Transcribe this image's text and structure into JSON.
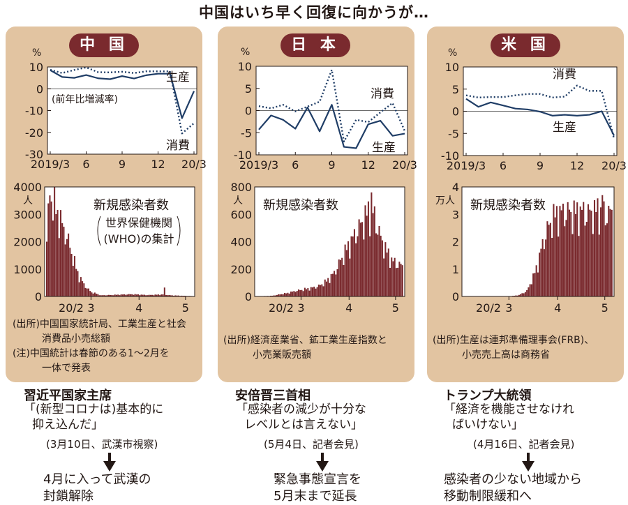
{
  "title": "中国はいち早く回復に向かうが…",
  "colors": {
    "panel": "#e2c4a1",
    "badge": "#7a2a2e",
    "line": "#1f3d66",
    "bar": "#7a2a2e",
    "text": "#231815"
  },
  "chart_data": [
    {
      "id": "china-econ",
      "type": "line",
      "unit": "%",
      "note": "(前年比増減率)",
      "x": [
        "2019/3",
        "4",
        "5",
        "6",
        "7",
        "8",
        "9",
        "10",
        "11",
        "12",
        "20/1",
        "20/2",
        "20/3"
      ],
      "xticks": [
        "2019/3",
        "6",
        "9",
        "12",
        "20/3"
      ],
      "ylim": [
        -30,
        10
      ],
      "yticks": [
        10,
        0,
        -10,
        -20,
        -30
      ],
      "series": [
        {
          "name": "生産",
          "style": "solid",
          "values": [
            8.5,
            5.4,
            5.0,
            6.3,
            4.8,
            4.4,
            5.8,
            4.7,
            6.2,
            6.9,
            6.9,
            -13.5,
            -1.1
          ]
        },
        {
          "name": "消費",
          "style": "dotted",
          "values": [
            8.7,
            7.2,
            8.6,
            9.8,
            7.6,
            7.5,
            7.8,
            7.2,
            8.0,
            8.0,
            8.0,
            -20.5,
            -15.8
          ]
        }
      ]
    },
    {
      "id": "japan-econ",
      "type": "line",
      "unit": "%",
      "x": [
        "2019/3",
        "4",
        "5",
        "6",
        "7",
        "8",
        "9",
        "10",
        "11",
        "12",
        "20/1",
        "20/2",
        "20/3"
      ],
      "xticks": [
        "2019/3",
        "6",
        "9",
        "12",
        "20/3"
      ],
      "ylim": [
        -10,
        10
      ],
      "yticks": [
        10,
        5,
        0,
        -5,
        -10
      ],
      "series": [
        {
          "name": "生産",
          "style": "solid",
          "values": [
            -4.3,
            -1.1,
            -2.1,
            -4.1,
            0.7,
            -4.7,
            1.3,
            -8.2,
            -8.5,
            -3.1,
            -2.3,
            -5.7,
            -5.2
          ]
        },
        {
          "name": "消費",
          "style": "dotted",
          "values": [
            1.0,
            0.5,
            1.3,
            -0.2,
            0.9,
            2.0,
            9.2,
            -7.0,
            -2.1,
            -2.6,
            -0.4,
            1.7,
            -4.6
          ]
        }
      ]
    },
    {
      "id": "us-econ",
      "type": "line",
      "unit": "%",
      "x": [
        "2019/3",
        "4",
        "5",
        "6",
        "7",
        "8",
        "9",
        "10",
        "11",
        "12",
        "20/1",
        "20/2",
        "20/3"
      ],
      "xticks": [
        "2019/3",
        "6",
        "9",
        "12",
        "20/3"
      ],
      "ylim": [
        -10,
        10
      ],
      "yticks": [
        10,
        5,
        0,
        -5,
        -10
      ],
      "series": [
        {
          "name": "生産",
          "style": "solid",
          "values": [
            2.8,
            1.0,
            2.0,
            1.3,
            0.6,
            0.4,
            -0.1,
            -1.0,
            -0.8,
            -1.0,
            -0.8,
            0,
            -5.5
          ]
        },
        {
          "name": "消費",
          "style": "dotted",
          "values": [
            3.6,
            3.1,
            3.2,
            3.2,
            3.6,
            3.9,
            3.9,
            3.1,
            3.3,
            5.8,
            4.6,
            4.6,
            -6.2
          ]
        }
      ]
    },
    {
      "id": "china-cases",
      "type": "bar",
      "title": "新規感染者数",
      "subtitle": "世界保健機関(WHO)の集計",
      "unit_label": "人",
      "ylim": [
        0,
        4000
      ],
      "yticks": [
        4000,
        3000,
        2000,
        1000,
        0
      ],
      "month_labels": [
        "20/2",
        "3",
        "4",
        "5"
      ],
      "month_day_index": [
        0,
        29,
        60,
        90
      ],
      "days": 95,
      "anomaly_day": 76,
      "anomaly_value": 325,
      "segments": [
        [
          0,
          2000
        ],
        [
          2,
          3800
        ],
        [
          4,
          3400
        ],
        [
          7,
          3000
        ],
        [
          9,
          2700
        ],
        [
          12,
          2300
        ],
        [
          15,
          1800
        ],
        [
          18,
          1200
        ],
        [
          21,
          700
        ],
        [
          24,
          450
        ],
        [
          26,
          300
        ],
        [
          29,
          150
        ],
        [
          32,
          100
        ],
        [
          35,
          40
        ],
        [
          45,
          60
        ],
        [
          55,
          80
        ],
        [
          65,
          50
        ],
        [
          75,
          70
        ],
        [
          80,
          40
        ],
        [
          95,
          10
        ]
      ]
    },
    {
      "id": "japan-cases",
      "type": "bar",
      "title": "新規感染者数",
      "unit_label": "人",
      "ylim": [
        0,
        800
      ],
      "yticks": [
        800,
        600,
        400,
        200,
        0
      ],
      "month_labels": [
        "20/2",
        "3",
        "4",
        "5"
      ],
      "month_day_index": [
        0,
        29,
        60,
        90
      ],
      "days": 95,
      "anomaly_day": 74,
      "anomaly_value": 760,
      "segments": [
        [
          0,
          0
        ],
        [
          10,
          5
        ],
        [
          15,
          15
        ],
        [
          20,
          25
        ],
        [
          25,
          40
        ],
        [
          30,
          50
        ],
        [
          35,
          60
        ],
        [
          40,
          75
        ],
        [
          45,
          110
        ],
        [
          50,
          170
        ],
        [
          55,
          280
        ],
        [
          60,
          380
        ],
        [
          65,
          480
        ],
        [
          69,
          550
        ],
        [
          72,
          610
        ],
        [
          76,
          580
        ],
        [
          80,
          420
        ],
        [
          84,
          320
        ],
        [
          88,
          250
        ],
        [
          92,
          230
        ],
        [
          95,
          210
        ]
      ]
    },
    {
      "id": "us-cases",
      "type": "bar",
      "title": "新規感染者数",
      "unit_label": "万人",
      "ylim": [
        0,
        4
      ],
      "yticks": [
        4,
        3,
        2,
        1,
        0
      ],
      "month_labels": [
        "20/2",
        "3",
        "4",
        "5"
      ],
      "month_day_index": [
        0,
        29,
        60,
        90
      ],
      "days": 95,
      "anomaly_day": 88,
      "anomaly_value": 3.7,
      "segments": [
        [
          0,
          0
        ],
        [
          30,
          0.01
        ],
        [
          35,
          0.05
        ],
        [
          40,
          0.2
        ],
        [
          44,
          0.7
        ],
        [
          47,
          1.2
        ],
        [
          50,
          1.9
        ],
        [
          53,
          2.4
        ],
        [
          56,
          2.8
        ],
        [
          60,
          3.0
        ],
        [
          65,
          3.05
        ],
        [
          70,
          3.0
        ],
        [
          75,
          3.05
        ],
        [
          80,
          3.0
        ],
        [
          85,
          3.1
        ],
        [
          90,
          3.0
        ],
        [
          95,
          3.0
        ]
      ]
    }
  ],
  "panels": {
    "china": {
      "label": "中 国",
      "source": [
        "(出所)中国国家統計局、工業生産と社会",
        "消費品小売総額",
        "(注)中国統計は春節のある1～2月を",
        "一体で発表"
      ],
      "leader": "習近平国家主席",
      "quote": [
        "「(新型コロナは)基本的に",
        "抑え込んだ」"
      ],
      "occasion": "(3月10日、武漢市視察)",
      "result": [
        "4月に入って武漢の",
        "封鎖解除"
      ]
    },
    "japan": {
      "label": "日 本",
      "source": [
        "(出所)経済産業省、鉱工業生産指数と",
        "小売業販売額"
      ],
      "leader": "安倍晋三首相",
      "quote": [
        "「感染者の減少が十分な",
        "レベルとは言えない」"
      ],
      "occasion": "(5月4日、記者会見)",
      "result": [
        "緊急事態宣言を",
        "5月末まで延長"
      ]
    },
    "us": {
      "label": "米 国",
      "source": [
        "(出所)生産は連邦準備理事会(FRB)、",
        "小売売上高は商務省"
      ],
      "leader": "トランプ大統領",
      "quote": [
        "「経済を機能させなけれ",
        "ばいけない」"
      ],
      "occasion": "(4月16日、記者会見)",
      "result": [
        "感染者の少ない地域から",
        "移動制限緩和へ"
      ]
    }
  }
}
